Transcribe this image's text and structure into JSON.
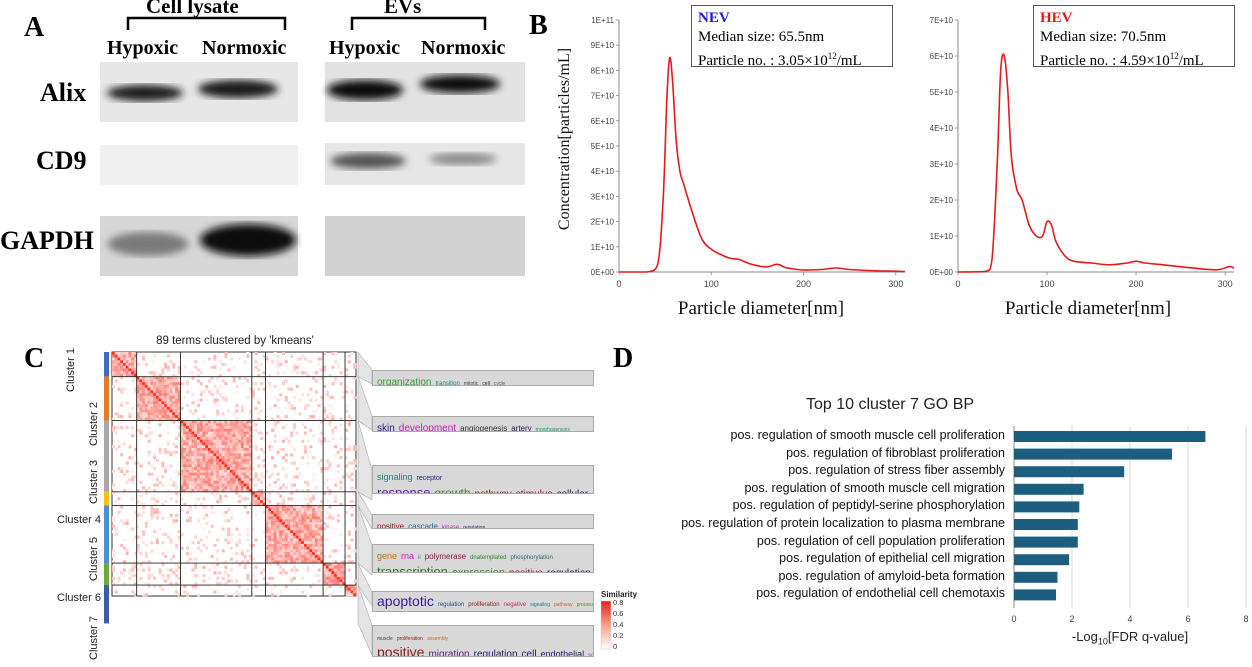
{
  "panels": {
    "a": "A",
    "b": "B",
    "c": "C",
    "d": "D"
  },
  "western_blot": {
    "group_cell": "Cell lysate",
    "group_ev": "EVs",
    "col_hyp_1": "Hypoxic",
    "col_norm_1": "Normoxic",
    "col_hyp_2": "Hypoxic",
    "col_norm_2": "Normoxic",
    "rows": [
      "Alix",
      "CD9",
      "GAPDH"
    ]
  },
  "nta": {
    "left": {
      "title": "NEV",
      "title_color": "#1a1adc",
      "median": "Median size: 65.5nm",
      "particle_prefix": "Particle no. : 3.05×10",
      "particle_exp": "12",
      "particle_suffix": "/mL"
    },
    "right": {
      "title": "HEV",
      "title_color": "#e01818",
      "median": "Median size: 70.5nm",
      "particle_prefix": "Particle no. : 4.59×10",
      "particle_exp": "12",
      "particle_suffix": "/mL"
    },
    "ylabel": "Concentration[particles/mL]",
    "xlabel_left": "Particle diameter[nm]",
    "xlabel_right": "Particle diameter[nm]"
  },
  "heatmap": {
    "title": "89 terms clustered by 'kmeans'",
    "clusters": [
      "Cluster 1",
      "Cluster 2",
      "Cluster 3",
      "Cluster 4",
      "Cluster 5",
      "Cluster 6",
      "Cluster 7"
    ],
    "legend_title": "Similarity",
    "legend_ticks": [
      "0.8",
      "0.6",
      "0.4",
      "0.2",
      "0"
    ],
    "wordclouds": [
      {
        "line1": [
          [
            "organization",
            "#3a9d3a",
            10
          ],
          [
            "transition",
            "#1a8a8a",
            6
          ],
          [
            "mitotic",
            "#444",
            5
          ],
          [
            "cell",
            "#222255",
            5
          ],
          [
            "cycle",
            "#2a7a2a",
            5
          ]
        ]
      },
      {
        "line1": [
          [
            "skin",
            "#222288",
            10
          ],
          [
            "development",
            "#c020c0",
            10
          ],
          [
            "angiogenesis",
            "#333",
            8
          ],
          [
            "artery",
            "#222255",
            8
          ],
          [
            "morphogenesis",
            "#2a9a6a",
            5
          ]
        ]
      },
      {
        "line1": [
          [
            "signaling",
            "#2a7a7a",
            9
          ],
          [
            "receptor",
            "#22229a",
            7
          ]
        ],
        "line2": [
          [
            "response",
            "#6a1a9a",
            13
          ],
          [
            "growth",
            "#3a8a2a",
            12
          ],
          [
            "pathway",
            "#8a2a2a",
            10
          ],
          [
            "stimulus",
            "#8a1a4a",
            10
          ],
          [
            "cellular",
            "#222266",
            10
          ]
        ]
      },
      {
        "line1": [
          [
            "positive",
            "#8a1a1a",
            8
          ],
          [
            "cascade",
            "#2a6a9a",
            8
          ],
          [
            "kinase",
            "#c020c0",
            6
          ],
          [
            "regulation",
            "#222266",
            5
          ]
        ]
      },
      {
        "line1": [
          [
            "gene",
            "#c07020",
            9
          ],
          [
            "rna",
            "#c020c0",
            9
          ],
          [
            "ii",
            "#3a8a2a",
            6
          ],
          [
            "polymerase",
            "#8a1a4a",
            8
          ],
          [
            "dnatemplated",
            "#2a8a2a",
            6
          ],
          [
            "phosphorylation",
            "#2a6a6a",
            6
          ]
        ],
        "line2": [
          [
            "transcription",
            "#2a7a2a",
            13
          ],
          [
            "expression",
            "#3a8a2a",
            11
          ],
          [
            "positive",
            "#8a1a1a",
            10
          ],
          [
            "regulation",
            "#222266",
            10
          ]
        ]
      },
      {
        "line1": [
          [
            "apoptotic",
            "#3a1a9a",
            14
          ],
          [
            "regulation",
            "#2a4a8a",
            6
          ],
          [
            "proliferation",
            "#8a1a1a",
            6
          ],
          [
            "negative",
            "#c03060",
            6
          ],
          [
            "signaling",
            "#2a7a7a",
            5
          ],
          [
            "pathway",
            "#c07020",
            5
          ],
          [
            "process",
            "#2a9a2a",
            5
          ]
        ]
      },
      {
        "line1": [
          [
            "muscle",
            "#444",
            5
          ],
          [
            "proliferation",
            "#8a1a1a",
            5
          ],
          [
            "assembly",
            "#c07020",
            5
          ]
        ],
        "line2": [
          [
            "positive",
            "#8a1a1a",
            14
          ],
          [
            "migration",
            "#5a1a9a",
            10
          ],
          [
            "regulation",
            "#222266",
            10
          ],
          [
            "cell",
            "#222266",
            10
          ],
          [
            "endothelial",
            "#222266",
            9
          ],
          [
            "smooth",
            "#c020c0",
            6
          ]
        ]
      }
    ]
  },
  "go_chart": {
    "title": "Top 10 cluster 7 GO BP",
    "xlabel_prefix": "-Log",
    "xlabel_sub": "10",
    "xlabel_suffix": "[FDR q-value]",
    "bar_color": "#1b5e80"
  },
  "chart_data": [
    {
      "type": "line",
      "title": "NEV",
      "xlabel": "Particle diameter[nm]",
      "ylabel": "Concentration[particles/mL]",
      "xlim": [
        0,
        310
      ],
      "ylim": [
        0,
        100000000000
      ],
      "x_ticks": [
        "0",
        "100",
        "200",
        "300"
      ],
      "y_ticks": [
        "0E+00",
        "1E+10",
        "2E+10",
        "3E+10",
        "4E+10",
        "5E+10",
        "6E+10",
        "7E+10",
        "8E+10",
        "9E+10",
        "1E+11"
      ],
      "x": [
        0,
        30,
        42,
        48,
        52,
        55,
        58,
        62,
        66,
        70,
        80,
        90,
        100,
        110,
        120,
        130,
        140,
        150,
        160,
        170,
        175,
        180,
        190,
        200,
        220,
        235,
        250,
        270,
        300,
        310
      ],
      "y": [
        0,
        0,
        3000000000.0,
        30000000000.0,
        70000000000.0,
        85000000000.0,
        76000000000.0,
        52000000000.0,
        40000000000.0,
        35000000000.0,
        23000000000.0,
        13000000000.0,
        9000000000.0,
        7000000000.0,
        5500000000.0,
        5000000000.0,
        3500000000.0,
        2500000000.0,
        2000000000.0,
        3000000000.0,
        2700000000.0,
        1800000000.0,
        1200000000.0,
        800000000.0,
        1000000000.0,
        1600000000.0,
        1000000000.0,
        600000000.0,
        300000000.0,
        200000000.0
      ]
    },
    {
      "type": "line",
      "title": "HEV",
      "xlabel": "Particle diameter[nm]",
      "ylabel": "Concentration[particles/mL]",
      "xlim": [
        0,
        310
      ],
      "ylim": [
        0,
        70000000000
      ],
      "x_ticks": [
        "0",
        "100",
        "200",
        "300"
      ],
      "y_ticks": [
        "0E+00",
        "1E+10",
        "2E+10",
        "3E+10",
        "4E+10",
        "5E+10",
        "6E+10",
        "7E+10"
      ],
      "x": [
        0,
        30,
        38,
        44,
        48,
        52,
        56,
        60,
        66,
        72,
        80,
        88,
        95,
        100,
        105,
        110,
        120,
        130,
        150,
        170,
        190,
        200,
        210,
        230,
        260,
        290,
        305,
        310
      ],
      "y": [
        0,
        100000000.0,
        3000000000.0,
        30000000000.0,
        56000000000.0,
        60000000000.0,
        50000000000.0,
        32000000000.0,
        23000000000.0,
        20000000000.0,
        13000000000.0,
        10000000000.0,
        10000000000.0,
        14000000000.0,
        13000000000.0,
        8500000000.0,
        4500000000.0,
        3000000000.0,
        2500000000.0,
        2000000000.0,
        2500000000.0,
        3000000000.0,
        2500000000.0,
        2000000000.0,
        1200000000.0,
        600000000.0,
        1500000000.0,
        1000000000.0
      ]
    },
    {
      "type": "bar",
      "orientation": "horizontal",
      "title": "Top 10 cluster 7 GO BP",
      "xlabel": "-Log10[FDR q-value]",
      "xlim": [
        0,
        8
      ],
      "x_ticks": [
        "0",
        "2",
        "4",
        "6",
        "8"
      ],
      "categories": [
        "pos. regulation of smooth muscle cell proliferation",
        "pos. regulation of fibroblast proliferation",
        "pos. regulation of stress fiber assembly",
        "pos. regulation of smooth muscle cell migration",
        "pos. regulation of peptidyl-serine phosphorylation",
        "pos. regulation of protein localization to plasma membrane",
        "pos. regulation of cell population proliferation",
        "pos. regulation of epithelial cell migration",
        "pos. regulation of amyloid-beta formation",
        "pos. regulation of endothelial cell chemotaxis"
      ],
      "values": [
        6.6,
        5.45,
        3.8,
        2.4,
        2.25,
        2.2,
        2.2,
        1.9,
        1.5,
        1.45
      ]
    }
  ]
}
